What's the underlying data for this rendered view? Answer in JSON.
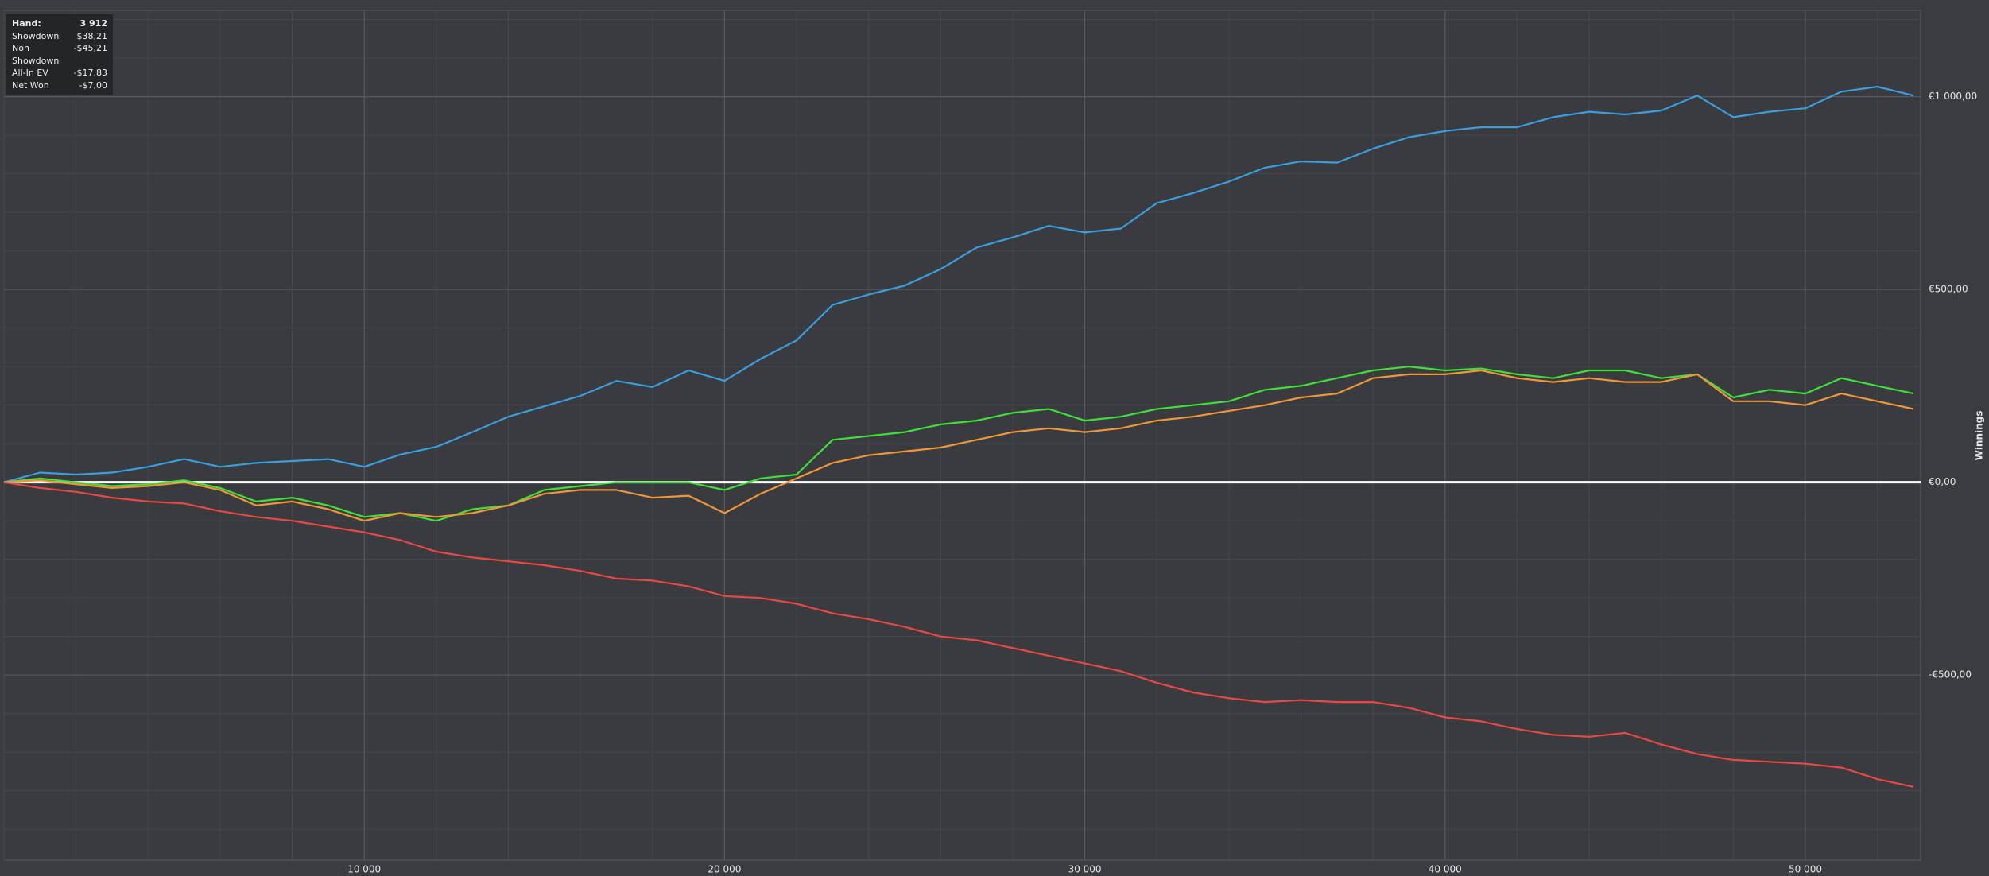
{
  "chart_data": {
    "type": "line",
    "y_axis_label": "Winnings",
    "x": [
      0,
      1000,
      2000,
      3000,
      4000,
      5000,
      6000,
      7000,
      8000,
      9000,
      10000,
      11000,
      12000,
      13000,
      14000,
      15000,
      16000,
      17000,
      18000,
      19000,
      20000,
      21000,
      22000,
      23000,
      24000,
      25000,
      26000,
      27000,
      28000,
      29000,
      30000,
      31000,
      32000,
      33000,
      34000,
      35000,
      36000,
      37000,
      38000,
      39000,
      40000,
      41000,
      42000,
      43000,
      44000,
      45000,
      46000,
      47000,
      48000,
      49000,
      50000,
      51000,
      52000,
      53000
    ],
    "series": [
      {
        "color": "#3a9ee0",
        "values": [
          0,
          25,
          20,
          25,
          40,
          60,
          40,
          50,
          55,
          60,
          40,
          72,
          92,
          130,
          170,
          197,
          224,
          263,
          247,
          290,
          263,
          320,
          368,
          460,
          487,
          510,
          553,
          609,
          635,
          665,
          648,
          658,
          724,
          750,
          780,
          816,
          832,
          829,
          865,
          895,
          911,
          921,
          921,
          947,
          961,
          954,
          964,
          1003,
          947,
          961,
          970,
          1013,
          1026,
          1003
        ]
      },
      {
        "color": "#3ee03a",
        "values": [
          0,
          10,
          0,
          -10,
          -5,
          5,
          -15,
          -50,
          -40,
          -60,
          -90,
          -80,
          -100,
          -70,
          -60,
          -20,
          -10,
          0,
          0,
          0,
          -20,
          10,
          20,
          110,
          120,
          130,
          150,
          160,
          180,
          190,
          160,
          170,
          190,
          200,
          210,
          240,
          250,
          270,
          290,
          300,
          290,
          295,
          280,
          270,
          290,
          290,
          270,
          280,
          220,
          240,
          230,
          270,
          250,
          230
        ]
      },
      {
        "color": "#f0973a",
        "values": [
          0,
          5,
          -5,
          -15,
          -10,
          0,
          -20,
          -60,
          -50,
          -70,
          -100,
          -80,
          -90,
          -80,
          -60,
          -30,
          -20,
          -20,
          -40,
          -35,
          -80,
          -30,
          10,
          50,
          70,
          80,
          90,
          110,
          130,
          140,
          130,
          140,
          160,
          170,
          185,
          200,
          220,
          230,
          270,
          280,
          280,
          290,
          270,
          260,
          270,
          260,
          260,
          280,
          210,
          210,
          200,
          230,
          210,
          190
        ]
      },
      {
        "color": "#e84848",
        "values": [
          0,
          -15,
          -25,
          -40,
          -50,
          -55,
          -75,
          -90,
          -100,
          -115,
          -130,
          -150,
          -180,
          -195,
          -205,
          -215,
          -230,
          -250,
          -255,
          -270,
          -295,
          -300,
          -315,
          -340,
          -355,
          -375,
          -400,
          -410,
          -430,
          -450,
          -470,
          -490,
          -520,
          -545,
          -560,
          -570,
          -565,
          -570,
          -570,
          -585,
          -610,
          -620,
          -640,
          -655,
          -660,
          -650,
          -680,
          -705,
          -720,
          -725,
          -730,
          -740,
          -770,
          -790
        ]
      }
    ],
    "xlim": [
      0,
      53200
    ],
    "ylim": [
      -980,
      1224
    ],
    "xticks": [
      {
        "value": 10000,
        "label": "10 000"
      },
      {
        "value": 20000,
        "label": "20 000"
      },
      {
        "value": 30000,
        "label": "30 000"
      },
      {
        "value": 40000,
        "label": "40 000"
      },
      {
        "value": 50000,
        "label": "50 000"
      }
    ],
    "yticks": [
      {
        "value": -500,
        "label": "-€500,00"
      },
      {
        "value": 0,
        "label": "€0,00"
      },
      {
        "value": 500,
        "label": "€500,00"
      },
      {
        "value": 1000,
        "label": "€1 000,00"
      }
    ],
    "grid": true,
    "minor_divisions": 5,
    "tooltip": [
      {
        "label": "Hand:",
        "value": "3 912"
      },
      {
        "label": "Showdown",
        "value": "$38,21"
      },
      {
        "label": "Non Showdown",
        "value": "-$45,21"
      },
      {
        "label": "All-In EV",
        "value": "-$17,83"
      },
      {
        "label": "Net Won",
        "value": "-$7,00"
      }
    ]
  }
}
